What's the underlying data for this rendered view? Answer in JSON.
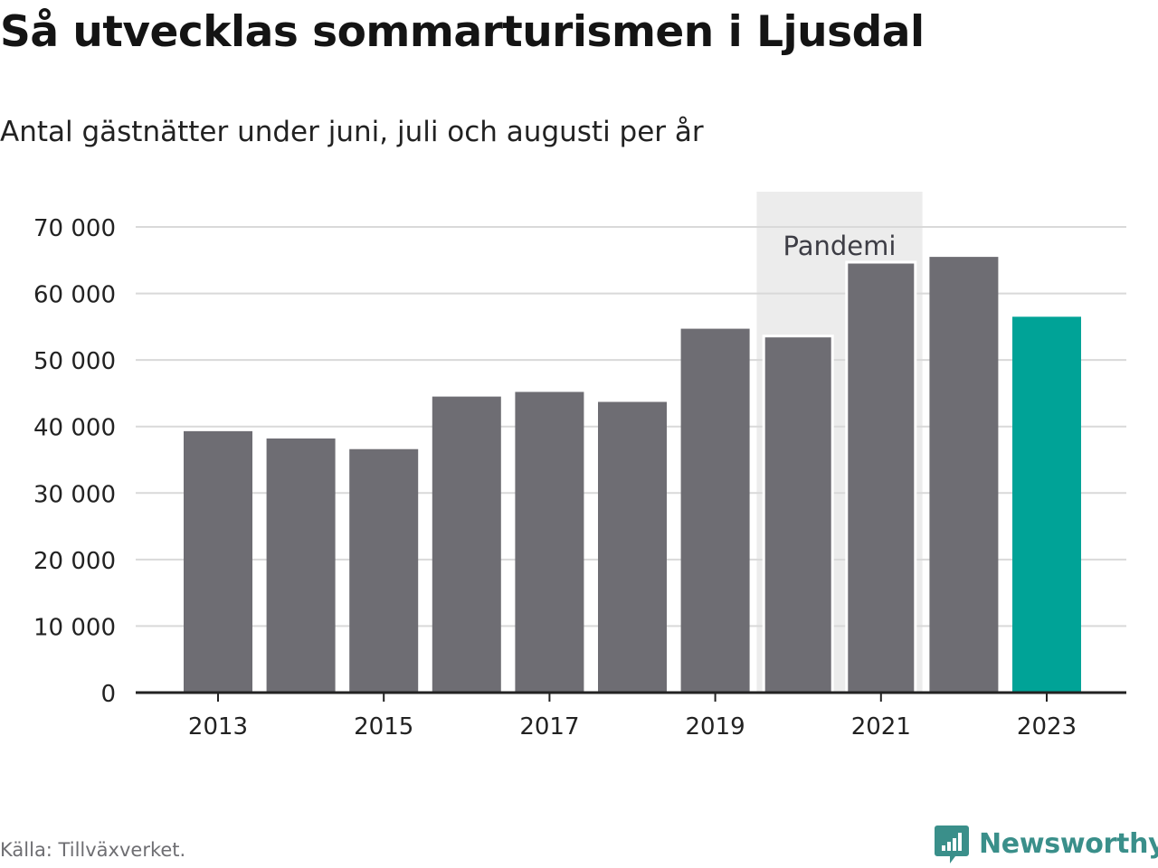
{
  "header": {
    "title": "Så utvecklas sommarturismen i Ljusdal",
    "subtitle": "Antal gästnätter under juni, juli och augusti per år"
  },
  "footer": {
    "source": "Källa: Tillväxverket.",
    "brand": "Newsworthy"
  },
  "colors": {
    "bar": "#6e6d73",
    "highlight": "#00a397",
    "shade": "#ececec",
    "grid": "#d9d9d9",
    "axis": "#222222",
    "brand": "#3a8f8a"
  },
  "chart_data": {
    "type": "bar",
    "title": "Så utvecklas sommarturismen i Ljusdal",
    "subtitle": "Antal gästnätter under juni, juli och augusti per år",
    "categories": [
      2013,
      2014,
      2015,
      2016,
      2017,
      2018,
      2019,
      2020,
      2021,
      2022,
      2023
    ],
    "values": [
      39300,
      38200,
      36600,
      44500,
      45200,
      43700,
      54700,
      53600,
      64700,
      65500,
      56500
    ],
    "highlight_category": 2023,
    "xticks": [
      "2013",
      "2015",
      "2017",
      "2019",
      "2021",
      "2023"
    ],
    "yticks": [
      0,
      10000,
      20000,
      30000,
      40000,
      50000,
      60000,
      70000
    ],
    "ytick_labels": [
      "0",
      "10 000",
      "20 000",
      "30 000",
      "40 000",
      "50 000",
      "60 000",
      "70 000"
    ],
    "ylim": [
      0,
      75000
    ],
    "xlabel": "",
    "ylabel": "",
    "grid": true,
    "legend": "none",
    "annotations": [
      {
        "label": "Pandemi",
        "from": 2020,
        "to": 2021
      }
    ]
  }
}
